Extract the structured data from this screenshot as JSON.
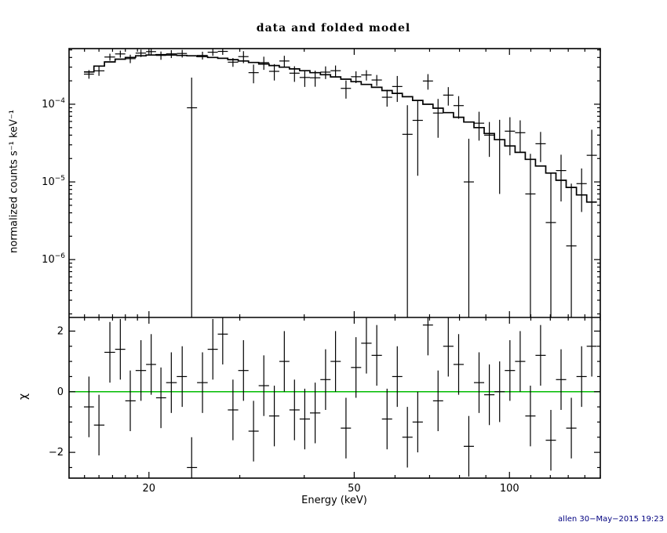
{
  "title": "data and folded model",
  "xlabel": "Energy (keV)",
  "ylabel_top": "normalized counts s⁻¹ keV⁻¹",
  "ylabel_bottom": "χ",
  "stamp": "allen 30−May−2015 19:23",
  "colors": {
    "foreground": "#000000",
    "zero_line": "#00bb00",
    "stamp_text": "#000080",
    "background": "#ffffff"
  },
  "chart_data": {
    "type": "line",
    "xlog": true,
    "xlim": [
      14,
      150
    ],
    "x_ticks": [
      20,
      50,
      100
    ],
    "x_minor_ticks": [
      15,
      16,
      17,
      18,
      19,
      30,
      40,
      60,
      70,
      80,
      90,
      110,
      120,
      130,
      140,
      150
    ],
    "x": [
      15.3,
      16.0,
      16.8,
      17.6,
      18.4,
      19.3,
      20.2,
      21.1,
      22.1,
      23.2,
      24.2,
      25.4,
      26.6,
      27.8,
      29.1,
      30.5,
      31.9,
      33.4,
      35.0,
      36.6,
      38.3,
      40.1,
      42.0,
      44.0,
      46.0,
      48.2,
      50.4,
      52.8,
      55.3,
      57.9,
      60.6,
      63.4,
      66.4,
      69.5,
      72.7,
      76.1,
      79.7,
      83.4,
      87.3,
      91.4,
      95.7,
      100.2,
      104.9,
      109.8,
      114.9,
      120.3,
      125.9,
      131.8,
      138.0,
      144.4
    ],
    "panels": [
      {
        "name": "spectrum",
        "ylog": true,
        "ylim": [
          1.8e-07,
          0.00052
        ],
        "y_tick_exponents": [
          -6,
          -5,
          -4
        ],
        "series": [
          {
            "name": "model",
            "style": "step",
            "values": [
              0.00026,
              0.00031,
              0.00035,
              0.00038,
              0.0004,
              0.00042,
              0.00043,
              0.000435,
              0.00043,
              0.000425,
              0.00042,
              0.00041,
              0.0004,
              0.00039,
              0.000375,
              0.00036,
              0.000345,
              0.00033,
              0.000315,
              0.0003,
              0.000285,
              0.00027,
              0.000255,
              0.00024,
              0.000225,
              0.00021,
              0.000195,
              0.00018,
              0.000165,
              0.00015,
              0.000138,
              0.000125,
              0.000112,
              0.0001,
              8.9e-05,
              7.8e-05,
              6.8e-05,
              5.9e-05,
              5e-05,
              4.2e-05,
              3.5e-05,
              2.9e-05,
              2.4e-05,
              1.95e-05,
              1.6e-05,
              1.3e-05,
              1.05e-05,
              8.5e-06,
              6.8e-06,
              5.5e-06
            ]
          },
          {
            "name": "data",
            "style": "errorbar-cross",
            "values": [
              0.000244,
              0.000269,
              0.000405,
              0.000444,
              0.000386,
              0.000455,
              0.000476,
              0.000425,
              0.000445,
              0.00045,
              9e-05,
              0.000425,
              0.000467,
              0.000479,
              0.000348,
              0.00041,
              0.000255,
              0.000343,
              0.000265,
              0.00036,
              0.000251,
              0.000221,
              0.000219,
              0.000259,
              0.00027,
              0.00016,
              0.000226,
              0.000238,
              0.000205,
              0.000123,
              0.000169,
              4.1e-05,
              6.2e-05,
              0.000199,
              7.7e-05,
              0.000131,
              9.6e-05,
              1e-05,
              5.7e-05,
              4e-05,
              3.5e-05,
              4.5e-05,
              4.3e-05,
              7e-06,
              3.1e-05,
              3e-06,
              1.4e-05,
              1.5e-06,
              9.5e-06,
              2.2e-05
            ],
            "errors": [
              3.1e-05,
              3.7e-05,
              4.2e-05,
              4.6e-05,
              4.8e-05,
              5e-05,
              5.2e-05,
              5.2e-05,
              5.2e-05,
              5.1e-05,
              0.00013,
              4.9e-05,
              4.8e-05,
              4.7e-05,
              4.5e-05,
              7.2e-05,
              6.9e-05,
              6.6e-05,
              6.3e-05,
              6e-05,
              5.7e-05,
              5.4e-05,
              5.1e-05,
              4.8e-05,
              4.5e-05,
              4.2e-05,
              3.9e-05,
              3.6e-05,
              3.3e-05,
              3e-05,
              6.2e-05,
              5.6e-05,
              5e-05,
              4.5e-05,
              4e-05,
              3.5e-05,
              3.1e-05,
              2.6e-05,
              2.3e-05,
              1.9e-05,
              2.8e-05,
              2.3e-05,
              1.9e-05,
              1.6e-05,
              1.3e-05,
              1e-05,
              8.4e-06,
              8e-06,
              5.4e-06,
              2.5e-05
            ]
          }
        ]
      },
      {
        "name": "residuals",
        "ylog": false,
        "ylim": [
          -2.85,
          2.45
        ],
        "y_ticks": [
          -2,
          0,
          2
        ],
        "y_minor_step": 0.5,
        "zero_line": 0,
        "series": [
          {
            "name": "chi",
            "style": "errorbar-cross",
            "values": [
              -0.5,
              -1.1,
              1.3,
              1.4,
              -0.3,
              0.7,
              0.9,
              -0.2,
              0.3,
              0.5,
              -2.5,
              0.3,
              1.4,
              1.9,
              -0.6,
              0.7,
              -1.3,
              0.2,
              -0.8,
              1.0,
              -0.6,
              -0.9,
              -0.7,
              0.4,
              1.0,
              -1.2,
              0.8,
              1.6,
              1.2,
              -0.9,
              0.5,
              -1.5,
              -1.0,
              2.2,
              -0.3,
              1.5,
              0.9,
              -1.8,
              0.3,
              -0.1,
              0.0,
              0.7,
              1.0,
              -0.8,
              1.2,
              -1.6,
              0.4,
              -1.2,
              0.5,
              1.5
            ],
            "error_const": 1
          }
        ]
      }
    ]
  }
}
